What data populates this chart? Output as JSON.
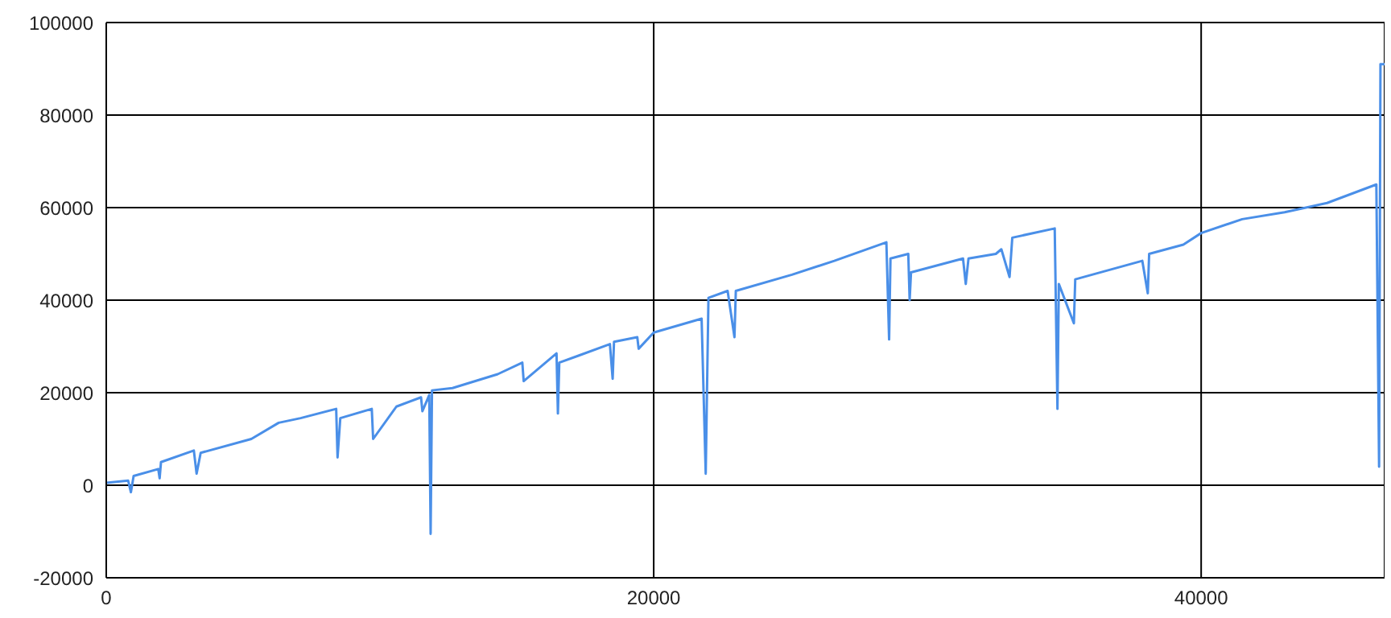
{
  "chart_data": {
    "type": "line",
    "x": [
      0,
      800,
      900,
      1000,
      1900,
      1950,
      2000,
      3200,
      3300,
      3450,
      5300,
      6300,
      7100,
      8400,
      8450,
      8550,
      9700,
      9750,
      10600,
      11500,
      11550,
      11800,
      11850,
      11900,
      12650,
      14300,
      15200,
      15250,
      16450,
      16500,
      16550,
      17250,
      18400,
      18500,
      18550,
      19400,
      19450,
      20000,
      21750,
      21900,
      22000,
      22700,
      22950,
      23000,
      25050,
      26600,
      28500,
      28600,
      28650,
      29300,
      29350,
      29400,
      31300,
      31400,
      31500,
      32500,
      32700,
      33000,
      33100,
      34650,
      34750,
      34800,
      35350,
      35400,
      37850,
      38050,
      38100,
      39350,
      40000,
      41500,
      43050,
      44600,
      46400,
      46500,
      46550,
      46700
    ],
    "series": [
      {
        "color": "#4a8fe8",
        "values": [
          500,
          1000,
          -1500,
          2000,
          3500,
          1500,
          5000,
          7500,
          2500,
          7000,
          10000,
          13500,
          14500,
          16500,
          6000,
          14500,
          16500,
          10000,
          17000,
          19000,
          16000,
          19500,
          -10500,
          20500,
          21000,
          24000,
          26500,
          22500,
          28500,
          15500,
          26500,
          28000,
          30500,
          23000,
          31000,
          32000,
          29500,
          33000,
          36000,
          2500,
          40500,
          42000,
          32000,
          42000,
          45500,
          48500,
          52500,
          31500,
          49000,
          50000,
          40000,
          46000,
          49000,
          43500,
          49000,
          50000,
          51000,
          45000,
          53500,
          55500,
          16500,
          43500,
          35000,
          44500,
          48500,
          41500,
          50000,
          52000,
          54500,
          57500,
          59000,
          61000,
          65000,
          4000,
          91000,
          91000
        ]
      }
    ],
    "xlim": [
      0,
      46700
    ],
    "xticks": [
      0,
      20000,
      40000
    ],
    "ylim": [
      -20000,
      100000
    ],
    "yticks": [
      -20000,
      0,
      20000,
      40000,
      60000,
      80000,
      100000
    ],
    "grid": true,
    "marker": "none",
    "line_style": "solid"
  }
}
